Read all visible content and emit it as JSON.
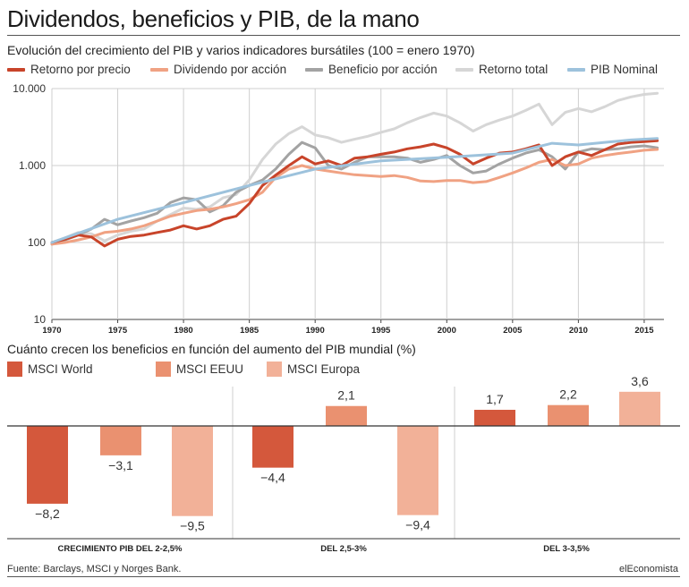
{
  "title": "Dividendos, beneficios y PIB, de la mano",
  "source": "Fuente: Barclays, MSCI y Norges Bank.",
  "brand": "elEconomista",
  "chart_data": [
    {
      "type": "line",
      "title": "Evolución del crecimiento del PIB y varios indicadores bursátiles (100 = enero 1970)",
      "yscale": "log",
      "ylim": [
        10,
        10000
      ],
      "yticks": [
        10,
        100,
        1000,
        10000
      ],
      "ytick_labels": [
        "10",
        "100",
        "1.000",
        "10.000"
      ],
      "xlim": [
        1970,
        2016.5
      ],
      "xticks": [
        1970,
        1975,
        1980,
        1985,
        1990,
        1995,
        2000,
        2005,
        2010,
        2015
      ],
      "xtick_labels": [
        "1970",
        "1975",
        "1980",
        "1985",
        "1990",
        "1995",
        "2000",
        "2005",
        "2010",
        "2015"
      ],
      "series": [
        {
          "name": "Retorno total",
          "color": "#d6d6d6",
          "points": [
            [
              1970,
              100
            ],
            [
              1971,
              115
            ],
            [
              1972,
              135
            ],
            [
              1973,
              130
            ],
            [
              1974,
              105
            ],
            [
              1975,
              125
            ],
            [
              1976,
              140
            ],
            [
              1977,
              150
            ],
            [
              1978,
              190
            ],
            [
              1979,
              230
            ],
            [
              1980,
              280
            ],
            [
              1981,
              270
            ],
            [
              1982,
              290
            ],
            [
              1983,
              380
            ],
            [
              1984,
              420
            ],
            [
              1985,
              650
            ],
            [
              1986,
              1200
            ],
            [
              1987,
              1900
            ],
            [
              1988,
              2600
            ],
            [
              1989,
              3200
            ],
            [
              1990,
              2500
            ],
            [
              1991,
              2300
            ],
            [
              1992,
              2000
            ],
            [
              1993,
              2200
            ],
            [
              1994,
              2400
            ],
            [
              1995,
              2700
            ],
            [
              1996,
              3000
            ],
            [
              1997,
              3600
            ],
            [
              1998,
              4200
            ],
            [
              1999,
              4800
            ],
            [
              2000,
              4400
            ],
            [
              2001,
              3600
            ],
            [
              2002,
              2800
            ],
            [
              2003,
              3400
            ],
            [
              2004,
              3900
            ],
            [
              2005,
              4400
            ],
            [
              2006,
              5200
            ],
            [
              2007,
              6300
            ],
            [
              2008,
              3400
            ],
            [
              2009,
              4900
            ],
            [
              2010,
              5500
            ],
            [
              2011,
              5000
            ],
            [
              2012,
              5800
            ],
            [
              2013,
              7000
            ],
            [
              2014,
              7800
            ],
            [
              2015,
              8400
            ],
            [
              2016,
              8700
            ]
          ]
        },
        {
          "name": "Beneficio por acción",
          "color": "#a3a3a3",
          "points": [
            [
              1970,
              95
            ],
            [
              1971,
              108
            ],
            [
              1972,
              125
            ],
            [
              1973,
              150
            ],
            [
              1974,
              200
            ],
            [
              1975,
              170
            ],
            [
              1976,
              190
            ],
            [
              1977,
              210
            ],
            [
              1978,
              240
            ],
            [
              1979,
              330
            ],
            [
              1980,
              380
            ],
            [
              1981,
              360
            ],
            [
              1982,
              250
            ],
            [
              1983,
              300
            ],
            [
              1984,
              450
            ],
            [
              1985,
              550
            ],
            [
              1986,
              650
            ],
            [
              1987,
              900
            ],
            [
              1988,
              1400
            ],
            [
              1989,
              2000
            ],
            [
              1990,
              1700
            ],
            [
              1991,
              1000
            ],
            [
              1992,
              900
            ],
            [
              1993,
              1100
            ],
            [
              1994,
              1300
            ],
            [
              1995,
              1300
            ],
            [
              1996,
              1300
            ],
            [
              1997,
              1250
            ],
            [
              1998,
              1100
            ],
            [
              1999,
              1200
            ],
            [
              2000,
              1350
            ],
            [
              2001,
              1000
            ],
            [
              2002,
              800
            ],
            [
              2003,
              850
            ],
            [
              2004,
              1050
            ],
            [
              2005,
              1250
            ],
            [
              2006,
              1450
            ],
            [
              2007,
              1600
            ],
            [
              2008,
              1300
            ],
            [
              2009,
              900
            ],
            [
              2010,
              1500
            ],
            [
              2011,
              1650
            ],
            [
              2012,
              1600
            ],
            [
              2013,
              1650
            ],
            [
              2014,
              1750
            ],
            [
              2015,
              1800
            ],
            [
              2016,
              1700
            ]
          ]
        },
        {
          "name": "Dividendo por acción",
          "color": "#f0a283",
          "points": [
            [
              1970,
              95
            ],
            [
              1971,
              100
            ],
            [
              1972,
              108
            ],
            [
              1973,
              118
            ],
            [
              1974,
              135
            ],
            [
              1975,
              140
            ],
            [
              1976,
              150
            ],
            [
              1977,
              165
            ],
            [
              1978,
              190
            ],
            [
              1979,
              220
            ],
            [
              1980,
              240
            ],
            [
              1981,
              260
            ],
            [
              1982,
              270
            ],
            [
              1983,
              290
            ],
            [
              1984,
              320
            ],
            [
              1985,
              360
            ],
            [
              1986,
              450
            ],
            [
              1987,
              700
            ],
            [
              1988,
              900
            ],
            [
              1989,
              1000
            ],
            [
              1990,
              900
            ],
            [
              1991,
              850
            ],
            [
              1992,
              800
            ],
            [
              1993,
              760
            ],
            [
              1994,
              740
            ],
            [
              1995,
              720
            ],
            [
              1996,
              740
            ],
            [
              1997,
              700
            ],
            [
              1998,
              630
            ],
            [
              1999,
              620
            ],
            [
              2000,
              640
            ],
            [
              2001,
              640
            ],
            [
              2002,
              600
            ],
            [
              2003,
              620
            ],
            [
              2004,
              700
            ],
            [
              2005,
              800
            ],
            [
              2006,
              930
            ],
            [
              2007,
              1100
            ],
            [
              2008,
              1200
            ],
            [
              2009,
              1000
            ],
            [
              2010,
              1050
            ],
            [
              2011,
              1250
            ],
            [
              2012,
              1350
            ],
            [
              2013,
              1430
            ],
            [
              2014,
              1500
            ],
            [
              2015,
              1580
            ],
            [
              2016,
              1620
            ]
          ]
        },
        {
          "name": "Retorno por precio",
          "color": "#c8442a",
          "points": [
            [
              1970,
              100
            ],
            [
              1971,
              110
            ],
            [
              1972,
              125
            ],
            [
              1973,
              118
            ],
            [
              1974,
              90
            ],
            [
              1975,
              110
            ],
            [
              1976,
              120
            ],
            [
              1977,
              125
            ],
            [
              1978,
              135
            ],
            [
              1979,
              145
            ],
            [
              1980,
              165
            ],
            [
              1981,
              150
            ],
            [
              1982,
              165
            ],
            [
              1983,
              200
            ],
            [
              1984,
              220
            ],
            [
              1985,
              320
            ],
            [
              1986,
              550
            ],
            [
              1987,
              750
            ],
            [
              1988,
              1000
            ],
            [
              1989,
              1300
            ],
            [
              1990,
              1050
            ],
            [
              1991,
              1150
            ],
            [
              1992,
              1000
            ],
            [
              1993,
              1250
            ],
            [
              1994,
              1300
            ],
            [
              1995,
              1400
            ],
            [
              1996,
              1500
            ],
            [
              1997,
              1650
            ],
            [
              1998,
              1750
            ],
            [
              1999,
              1900
            ],
            [
              2000,
              1700
            ],
            [
              2001,
              1400
            ],
            [
              2002,
              1050
            ],
            [
              2003,
              1250
            ],
            [
              2004,
              1450
            ],
            [
              2005,
              1500
            ],
            [
              2006,
              1650
            ],
            [
              2007,
              1850
            ],
            [
              2008,
              1000
            ],
            [
              2009,
              1300
            ],
            [
              2010,
              1500
            ],
            [
              2011,
              1350
            ],
            [
              2012,
              1600
            ],
            [
              2013,
              1900
            ],
            [
              2014,
              2000
            ],
            [
              2015,
              2050
            ],
            [
              2016,
              2100
            ]
          ]
        },
        {
          "name": "PIB Nominal",
          "color": "#9dc2dc",
          "points": [
            [
              1970,
              100
            ],
            [
              1975,
              200
            ],
            [
              1980,
              330
            ],
            [
              1985,
              550
            ],
            [
              1990,
              900
            ],
            [
              1995,
              1150
            ],
            [
              2000,
              1280
            ],
            [
              2005,
              1450
            ],
            [
              2008,
              1950
            ],
            [
              2010,
              1850
            ],
            [
              2012,
              2000
            ],
            [
              2014,
              2150
            ],
            [
              2016,
              2250
            ]
          ]
        }
      ]
    },
    {
      "type": "bar",
      "title": "Cuánto crecen los beneficios en función del aumento del PIB mundial (%)",
      "categories": [
        "CRECIMIENTO PIB DEL 2-2,5%",
        "DEL 2,5-3%",
        "DEL 3-3,5%"
      ],
      "series": [
        {
          "name": "MSCI World",
          "color": "#d4583c",
          "values": [
            -8.2,
            -4.4,
            1.7
          ],
          "labels": [
            "−8,2",
            "−4,4",
            "1,7"
          ]
        },
        {
          "name": "MSCI EEUU",
          "color": "#ea9170",
          "values": [
            -3.1,
            2.1,
            2.2
          ],
          "labels": [
            "−3,1",
            "2,1",
            "2,2"
          ]
        },
        {
          "name": "MSCI Europa",
          "color": "#f2b198",
          "values": [
            -9.5,
            -9.4,
            3.6
          ],
          "labels": [
            "−9,5",
            "−9,4",
            "3,6"
          ]
        }
      ]
    }
  ]
}
